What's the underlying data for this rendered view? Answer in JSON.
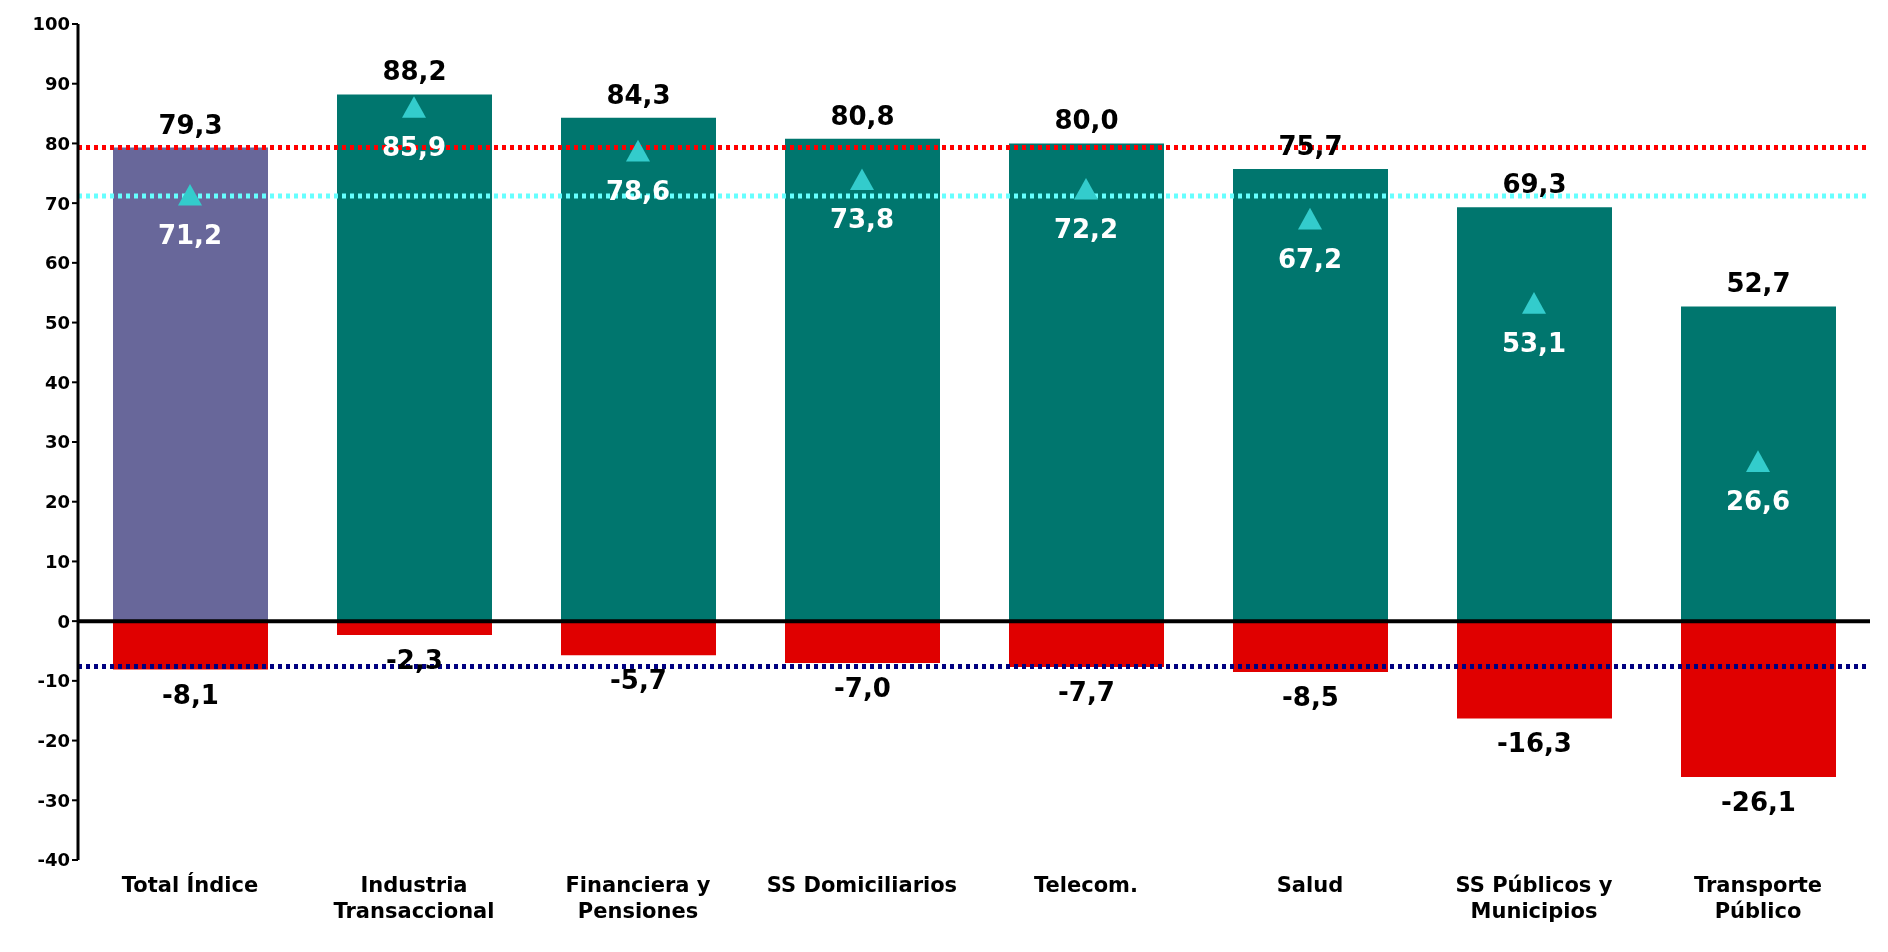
{
  "chart_data": {
    "type": "bar",
    "stacked": true,
    "categories": [
      "Total Índice",
      "Industria Transaccional",
      "Financiera y Pensiones",
      "SS Domiciliarios",
      "Telecom.",
      "Salud",
      "SS Públicos y Municipios",
      "Transporte Público"
    ],
    "series": [
      {
        "colors": [
          "#68679a",
          "#00766e",
          "#00766e",
          "#00766e",
          "#00766e",
          "#00766e",
          "#00766e",
          "#00766e"
        ],
        "values": [
          79.3,
          88.2,
          84.3,
          80.8,
          80.0,
          75.7,
          69.3,
          52.7
        ],
        "value_labels": [
          "79,3",
          "88,2",
          "84,3",
          "80,8",
          "80,0",
          "75,7",
          "69,3",
          "52,7"
        ]
      },
      {
        "color": "#e00000",
        "values": [
          -8.1,
          -2.3,
          -5.7,
          -7.0,
          -7.7,
          -8.5,
          -16.3,
          -26.1
        ],
        "value_labels": [
          "-8,1",
          "-2,3",
          "-5,7",
          "-7,0",
          "-7,7",
          "-8,5",
          "-16,3",
          "-26,1"
        ]
      },
      {
        "type": "scatter",
        "color": "#33cccc",
        "values": [
          71.2,
          85.9,
          78.6,
          73.8,
          72.2,
          67.2,
          53.1,
          26.6
        ],
        "value_labels": [
          "71,2",
          "85,9",
          "78,6",
          "73,8",
          "72,2",
          "67,2",
          "53,1",
          "26,6"
        ]
      }
    ],
    "marker": "triangle",
    "grid": false,
    "legend": false,
    "ylim": [
      -40,
      100
    ],
    "yticks": [
      -40,
      -30,
      -20,
      -10,
      0,
      10,
      20,
      30,
      40,
      50,
      60,
      70,
      80,
      90,
      100
    ],
    "ref_lines": [
      {
        "axis": "y",
        "value": 0,
        "color": "#000000",
        "line_style": "solid"
      },
      {
        "axis": "y",
        "value": 79.3,
        "color": "#ff0000",
        "line_style": "dotted"
      },
      {
        "axis": "y",
        "value": 71.2,
        "color": "#66ffff",
        "line_style": "dotted"
      },
      {
        "axis": "y",
        "value": -7.6,
        "color": "#000080",
        "line_style": "dotted"
      }
    ]
  }
}
